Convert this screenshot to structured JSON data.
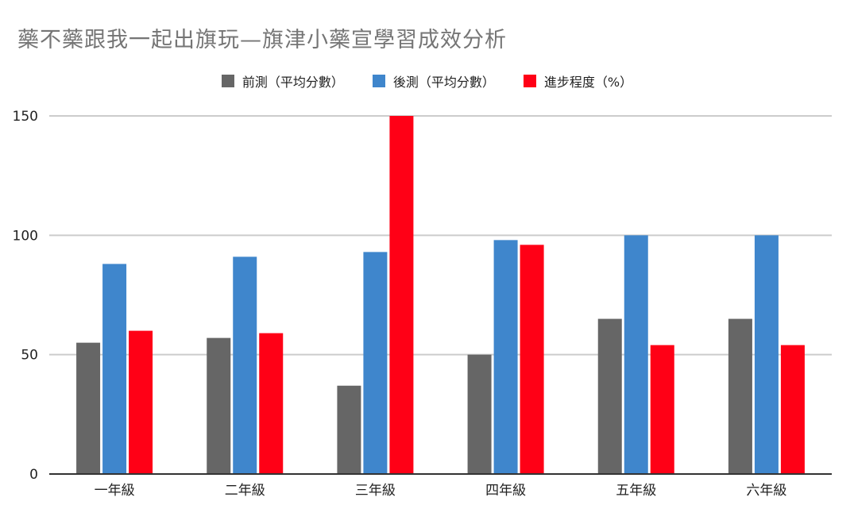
{
  "colors": {
    "background": "#ffffff",
    "title": "#757575",
    "grid": "#cccccc",
    "axis": "#333333",
    "text": "#222222"
  },
  "chart_data": {
    "type": "bar",
    "title": "藥不藥跟我一起出旗玩—旗津小藥宣學習成效分析",
    "xlabel": "",
    "ylabel": "",
    "ylim": [
      0,
      150
    ],
    "yticks": [
      0,
      50,
      100,
      150
    ],
    "grid": true,
    "legend_position": "top",
    "categories": [
      "一年級",
      "二年級",
      "三年級",
      "四年級",
      "五年級",
      "六年級"
    ],
    "series": [
      {
        "name": "前測（平均分數）",
        "color": "#666666",
        "values": [
          55,
          57,
          37,
          50,
          65,
          65
        ]
      },
      {
        "name": "後測（平均分數）",
        "color": "#3f86cc",
        "values": [
          88,
          91,
          93,
          98,
          100,
          100
        ]
      },
      {
        "name": "進步程度（%）",
        "color": "#ff0016",
        "values": [
          60,
          59,
          150,
          96,
          54,
          54
        ]
      }
    ]
  }
}
